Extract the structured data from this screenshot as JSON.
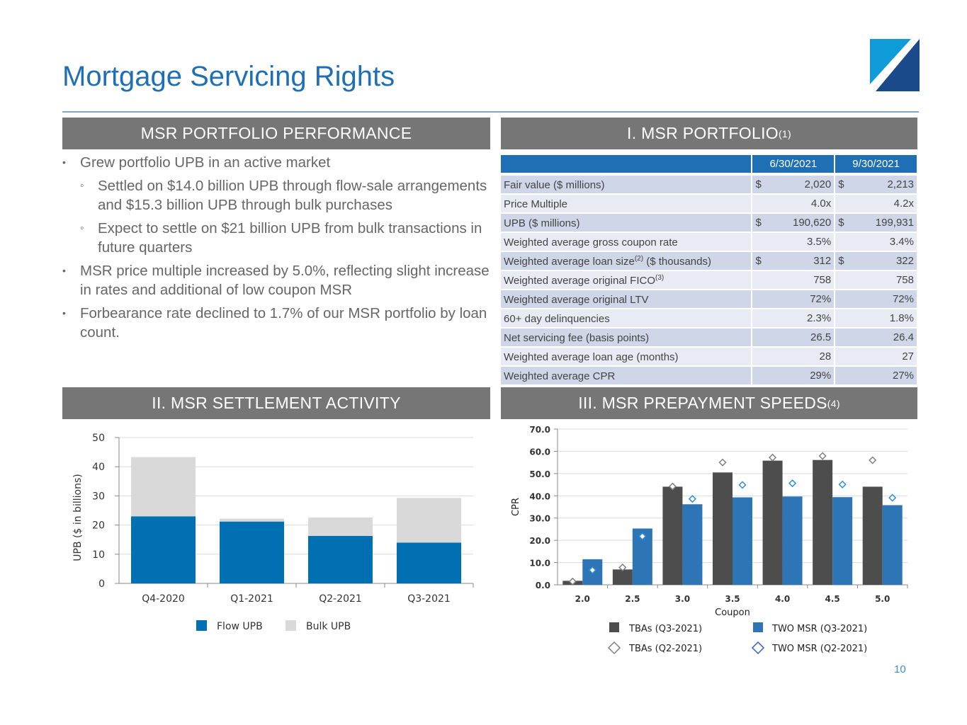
{
  "title": "Mortgage Servicing Rights",
  "page_number": "10",
  "colors": {
    "accent": "#1f6fb5",
    "band": "#767676",
    "flow": "#0070b3",
    "bulk": "#d9d9d9",
    "tba": "#4d4d4d",
    "two": "#2e75b6"
  },
  "performance": {
    "heading": "MSR PORTFOLIO PERFORMANCE",
    "bullets": [
      {
        "level": 1,
        "text": "Grew portfolio UPB in an active market"
      },
      {
        "level": 2,
        "text": "Settled on $14.0 billion UPB through flow-sale arrangements and $15.3 billion UPB through bulk purchases"
      },
      {
        "level": 2,
        "text": "Expect to settle on $21 billion UPB from bulk transactions in future quarters"
      },
      {
        "level": 1,
        "text": "MSR price multiple increased by 5.0%, reflecting slight increase in rates and additional of low coupon MSR"
      },
      {
        "level": 1,
        "text": "Forbearance rate declined to 1.7% of our MSR portfolio by loan count."
      }
    ]
  },
  "portfolio": {
    "heading": "I.  MSR PORTFOLIO",
    "heading_sup": "(1)",
    "columns": [
      "6/30/2021",
      "9/30/2021"
    ],
    "rows": [
      {
        "label": "Fair value ($ millions)",
        "sup": "",
        "label_tail": "",
        "c1_cur": "$",
        "c1": "2,020",
        "c2_cur": "$",
        "c2": "2,213"
      },
      {
        "label": "Price Multiple",
        "sup": "",
        "label_tail": "",
        "c1_cur": "",
        "c1": "4.0x",
        "c2_cur": "",
        "c2": "4.2x"
      },
      {
        "label": "UPB ($ millions)",
        "sup": "",
        "label_tail": "",
        "c1_cur": "$",
        "c1": "190,620",
        "c2_cur": "$",
        "c2": "199,931"
      },
      {
        "label": "Weighted average gross coupon rate",
        "sup": "",
        "label_tail": "",
        "c1_cur": "",
        "c1": "3.5%",
        "c2_cur": "",
        "c2": "3.4%"
      },
      {
        "label": "Weighted average loan size",
        "sup": "(2)",
        "label_tail": " ($ thousands)",
        "c1_cur": "$",
        "c1": "312",
        "c2_cur": "$",
        "c2": "322"
      },
      {
        "label": "Weighted average original FICO",
        "sup": "(3)",
        "label_tail": "",
        "c1_cur": "",
        "c1": "758",
        "c2_cur": "",
        "c2": "758"
      },
      {
        "label": "Weighted average original LTV",
        "sup": "",
        "label_tail": "",
        "c1_cur": "",
        "c1": "72%",
        "c2_cur": "",
        "c2": "72%"
      },
      {
        "label": "60+ day delinquencies",
        "sup": "",
        "label_tail": "",
        "c1_cur": "",
        "c1": "2.3%",
        "c2_cur": "",
        "c2": "1.8%"
      },
      {
        "label": "Net servicing fee (basis points)",
        "sup": "",
        "label_tail": "",
        "c1_cur": "",
        "c1": "26.5",
        "c2_cur": "",
        "c2": "26.4"
      },
      {
        "label": "Weighted average loan age (months)",
        "sup": "",
        "label_tail": "",
        "c1_cur": "",
        "c1": "28",
        "c2_cur": "",
        "c2": "27"
      },
      {
        "label": "Weighted average CPR",
        "sup": "",
        "label_tail": "",
        "c1_cur": "",
        "c1": "29%",
        "c2_cur": "",
        "c2": "27%"
      }
    ]
  },
  "settlement": {
    "heading": "II. MSR SETTLEMENT ACTIVITY"
  },
  "prepayment": {
    "heading": "III. MSR PREPAYMENT SPEEDS",
    "heading_sup": "(4)"
  },
  "chart_data": [
    {
      "type": "bar",
      "stacked": true,
      "categories": [
        "Q4-2020",
        "Q1-2021",
        "Q2-2021",
        "Q3-2021"
      ],
      "series": [
        {
          "name": "Flow UPB",
          "values": [
            23.0,
            21.2,
            16.3,
            14.0
          ]
        },
        {
          "name": "Bulk UPB",
          "values": [
            20.3,
            1.0,
            6.3,
            15.3
          ]
        }
      ],
      "ylabel": "UPB ($ in billions)",
      "ylim": [
        0,
        50
      ],
      "yticks": [
        "0",
        "10",
        "20",
        "30",
        "40",
        "50"
      ],
      "grid": true,
      "legend": "bottom"
    },
    {
      "type": "bar",
      "categories": [
        "2.0",
        "2.5",
        "3.0",
        "3.5",
        "4.0",
        "4.5",
        "5.0"
      ],
      "xlabel": "Coupon",
      "ylabel": "CPR",
      "ylim": [
        0,
        70
      ],
      "yticks": [
        "0.0",
        "10.0",
        "20.0",
        "30.0",
        "40.0",
        "50.0",
        "60.0",
        "70.0"
      ],
      "grid": true,
      "legend": "bottom",
      "series": [
        {
          "name": "TBAs (Q3-2021)",
          "kind": "bar",
          "values": [
            1.8,
            6.9,
            44.1,
            50.5,
            55.8,
            56.1,
            44.1
          ]
        },
        {
          "name": "TWO MSR (Q3-2021)",
          "kind": "bar",
          "values": [
            11.5,
            25.3,
            36.2,
            39.3,
            39.7,
            39.4,
            35.8
          ]
        },
        {
          "name": "TBAs (Q2-2021)",
          "kind": "marker",
          "values": [
            1.5,
            7.8,
            44.2,
            55.0,
            57.2,
            57.9,
            56.0
          ]
        },
        {
          "name": "TWO MSR (Q2-2021)",
          "kind": "marker",
          "values": [
            6.6,
            21.8,
            38.6,
            44.9,
            45.6,
            45.1,
            39.1
          ]
        }
      ]
    }
  ]
}
